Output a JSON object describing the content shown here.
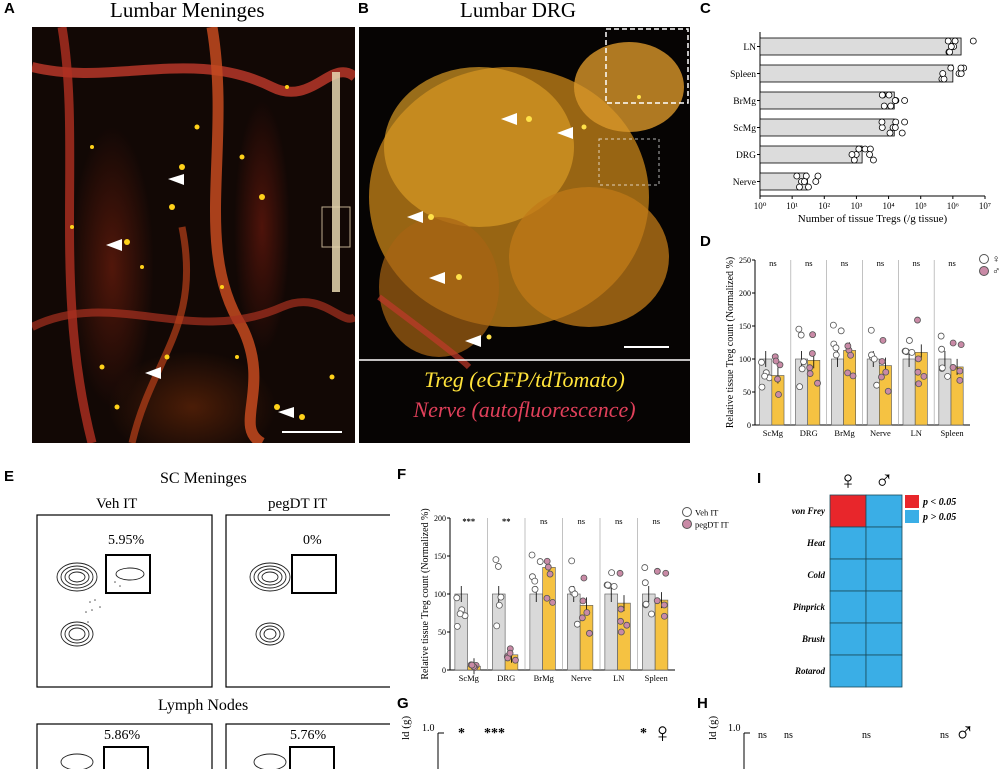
{
  "panels": {
    "A": {
      "letter": "A",
      "title": "Lumbar Meninges"
    },
    "B": {
      "letter": "B",
      "title": "Lumbar DRG",
      "legend_treg": "Treg (eGFP/tdTomato)",
      "legend_nerve": "Nerve (autofluorescence)"
    },
    "C": {
      "letter": "C"
    },
    "D": {
      "letter": "D"
    },
    "E": {
      "letter": "E",
      "title": "SC Meninges",
      "left_title": "Veh IT",
      "right_title": "pegDT IT",
      "gate1": "5.95%",
      "gate2": "0%",
      "lymph_title": "Lymph Nodes",
      "gate3": "5.86%",
      "gate4": "5.76%"
    },
    "F": {
      "letter": "F"
    },
    "G": {
      "letter": "G",
      "ylabel": "ld (g)",
      "ytick": "1.0",
      "sig1": "*",
      "sig2": "***",
      "sig3": "*"
    },
    "H": {
      "letter": "H",
      "ylabel": "ld (g)",
      "ytick": "1.0",
      "sig1": "ns",
      "sig2": "ns",
      "sig3": "ns",
      "sig4": "ns"
    },
    "I": {
      "letter": "I"
    }
  },
  "chart_data": [
    {
      "id": "C",
      "type": "bar",
      "orientation": "horizontal",
      "categories": [
        "LN",
        "Spleen",
        "BrMg",
        "ScMg",
        "DRG",
        "Nerve"
      ],
      "values": [
        1800000,
        1000000,
        15000,
        15000,
        1500,
        30
      ],
      "xlabel": "Number of tissue Tregs (/g tissue)",
      "xscale": "log",
      "xlim": [
        1,
        10000000
      ],
      "xticks": [
        "10⁰",
        "10¹",
        "10²",
        "10³",
        "10⁴",
        "10⁵",
        "10⁶",
        "10⁷"
      ]
    },
    {
      "id": "D",
      "type": "bar",
      "categories": [
        "ScMg",
        "DRG",
        "BrMg",
        "Nerve",
        "LN",
        "Spleen"
      ],
      "series": [
        {
          "name": "♀",
          "values": [
            100,
            100,
            100,
            100,
            100,
            100
          ],
          "color": "#d9d9d9"
        },
        {
          "name": "♂",
          "values": [
            75,
            98,
            113,
            90,
            110,
            88
          ],
          "color": "#f5c242"
        }
      ],
      "significance": [
        "ns",
        "ns",
        "ns",
        "ns",
        "ns",
        "ns"
      ],
      "ylabel": "Relative tissue Treg count (Normalized %)",
      "ylim": [
        0,
        250
      ],
      "yticks": [
        0,
        50,
        100,
        150,
        200,
        250
      ],
      "legend": "top-right"
    },
    {
      "id": "F",
      "type": "bar",
      "categories": [
        "ScMg",
        "DRG",
        "BrMg",
        "Nerve",
        "LN",
        "Spleen"
      ],
      "series": [
        {
          "name": "Veh IT",
          "values": [
            100,
            100,
            100,
            100,
            100,
            100
          ],
          "color": "#d9d9d9"
        },
        {
          "name": "pegDT IT",
          "values": [
            5,
            20,
            135,
            85,
            88,
            92
          ],
          "color": "#f5c242"
        }
      ],
      "significance": [
        "***",
        "**",
        "ns",
        "ns",
        "ns",
        "ns"
      ],
      "ylabel": "Relative tissue Treg count (Normalized %)",
      "ylim": [
        0,
        200
      ],
      "yticks": [
        0,
        50,
        100,
        150,
        200
      ],
      "legend": "top-right"
    },
    {
      "id": "I",
      "type": "heatmap",
      "columns": [
        "♀",
        "♂"
      ],
      "rows": [
        "von Frey",
        "Heat",
        "Cold",
        "Pinprick",
        "Brush",
        "Rotarod"
      ],
      "values": [
        [
          1,
          0
        ],
        [
          0,
          0
        ],
        [
          0,
          0
        ],
        [
          0,
          0
        ],
        [
          0,
          0
        ],
        [
          0,
          0
        ]
      ],
      "legend": [
        {
          "label": "p < 0.05",
          "color": "#e8262b"
        },
        {
          "label": "p > 0.05",
          "color": "#3aaee6"
        }
      ]
    }
  ]
}
